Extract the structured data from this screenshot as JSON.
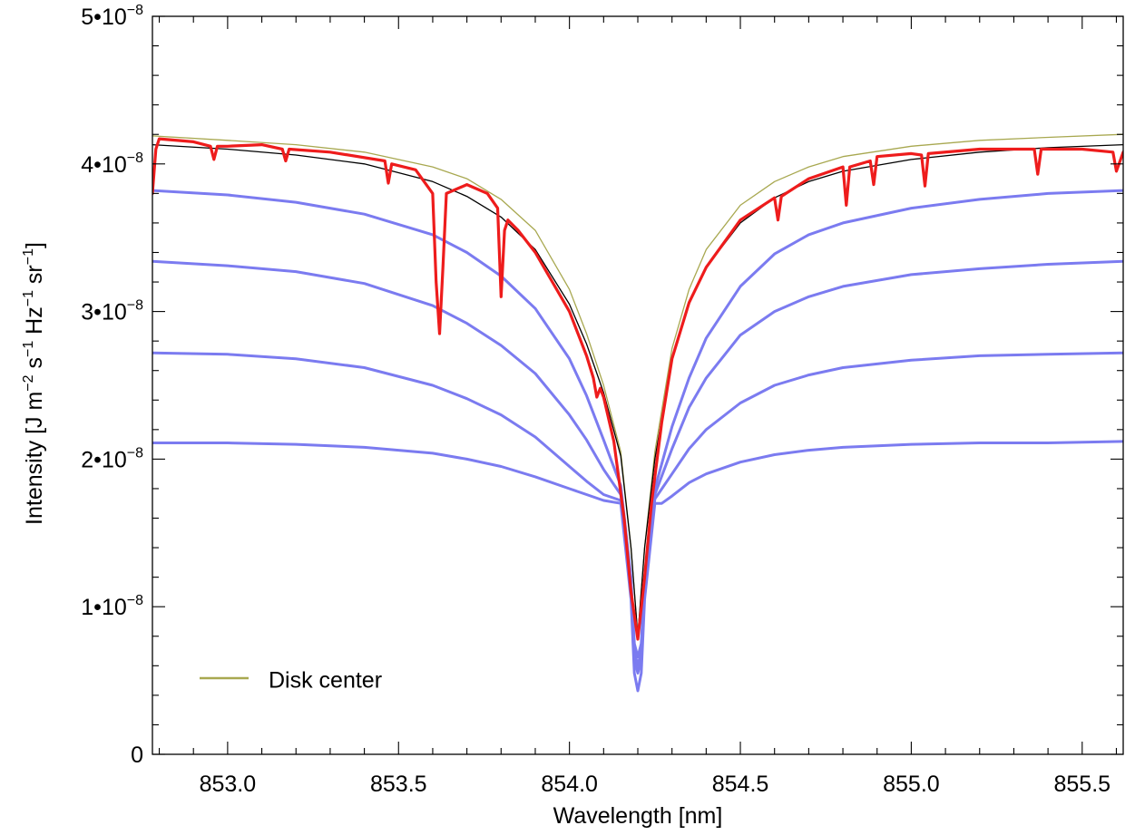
{
  "chart_data": {
    "type": "line",
    "xlabel": "Wavelength [nm]",
    "ylabel": {
      "parts": [
        {
          "t": "Intensity [J m",
          "sup": false
        },
        {
          "t": "−2",
          "sup": true
        },
        {
          "t": " s",
          "sup": false
        },
        {
          "t": "−1",
          "sup": true
        },
        {
          "t": " Hz",
          "sup": false
        },
        {
          "t": "−1",
          "sup": true
        },
        {
          "t": " sr",
          "sup": false
        },
        {
          "t": "−1",
          "sup": true
        },
        {
          "t": "]",
          "sup": false
        }
      ]
    },
    "xlim": [
      852.78,
      855.62
    ],
    "ylim": [
      0,
      5e-08
    ],
    "x_ticks": [
      {
        "value": 853.0,
        "label": "853.0"
      },
      {
        "value": 853.5,
        "label": "853.5"
      },
      {
        "value": 854.0,
        "label": "854.0"
      },
      {
        "value": 854.5,
        "label": "854.5"
      },
      {
        "value": 855.0,
        "label": "855.0"
      },
      {
        "value": 855.5,
        "label": "855.5"
      }
    ],
    "y_ticks": [
      {
        "value": 0,
        "mant": "0",
        "exp": ""
      },
      {
        "value": 1e-08,
        "mant": "1•10",
        "exp": "−8"
      },
      {
        "value": 2e-08,
        "mant": "2•10",
        "exp": "−8"
      },
      {
        "value": 3e-08,
        "mant": "3•10",
        "exp": "−8"
      },
      {
        "value": 4e-08,
        "mant": "4•10",
        "exp": "−8"
      },
      {
        "value": 5e-08,
        "mant": "5•10",
        "exp": "−8"
      }
    ],
    "legend": {
      "position": "bottom-left",
      "entries": [
        {
          "label": "Disk center",
          "color": "#a8a850"
        }
      ]
    },
    "series": [
      {
        "name": "Disk center",
        "color": "#a8a850",
        "width": 1.3,
        "x": [
          852.78,
          853.0,
          853.2,
          853.4,
          853.6,
          853.7,
          853.8,
          853.9,
          854.0,
          854.05,
          854.1,
          854.15,
          854.18,
          854.2,
          854.22,
          854.25,
          854.3,
          854.35,
          854.4,
          854.5,
          854.6,
          854.7,
          854.8,
          855.0,
          855.2,
          855.4,
          855.62
        ],
        "y": [
          4.19e-08,
          4.16e-08,
          4.13e-08,
          4.08e-08,
          3.98e-08,
          3.9e-08,
          3.76e-08,
          3.55e-08,
          3.15e-08,
          2.85e-08,
          2.5e-08,
          2.05e-08,
          1.4e-08,
          8e-09,
          1.4e-08,
          2.05e-08,
          2.75e-08,
          3.15e-08,
          3.42e-08,
          3.72e-08,
          3.88e-08,
          3.98e-08,
          4.05e-08,
          4.12e-08,
          4.16e-08,
          4.18e-08,
          4.2e-08
        ]
      },
      {
        "name": "",
        "color": "#000000",
        "width": 1.3,
        "x": [
          852.78,
          853.0,
          853.2,
          853.4,
          853.6,
          853.7,
          853.8,
          853.9,
          854.0,
          854.05,
          854.1,
          854.15,
          854.18,
          854.2,
          854.22,
          854.25,
          854.3,
          854.35,
          854.4,
          854.5,
          854.6,
          854.7,
          854.8,
          855.0,
          855.2,
          855.4,
          855.62
        ],
        "y": [
          4.13e-08,
          4.1e-08,
          4.06e-08,
          4e-08,
          3.88e-08,
          3.78e-08,
          3.64e-08,
          3.42e-08,
          3.05e-08,
          2.78e-08,
          2.45e-08,
          2.02e-08,
          1.4e-08,
          8e-09,
          1.4e-08,
          2e-08,
          2.68e-08,
          3.05e-08,
          3.3e-08,
          3.6e-08,
          3.77e-08,
          3.88e-08,
          3.95e-08,
          4.03e-08,
          4.08e-08,
          4.11e-08,
          4.13e-08
        ]
      },
      {
        "name": "",
        "color": "#7b7bf0",
        "width": 3,
        "x": [
          852.78,
          853.0,
          853.2,
          853.4,
          853.6,
          853.7,
          853.8,
          853.9,
          854.0,
          854.05,
          854.1,
          854.15,
          854.18,
          854.19,
          854.2,
          854.21,
          854.22,
          854.25,
          854.3,
          854.35,
          854.4,
          854.5,
          854.6,
          854.7,
          854.8,
          855.0,
          855.2,
          855.4,
          855.62
        ],
        "y": [
          3.82e-08,
          3.79e-08,
          3.74e-08,
          3.66e-08,
          3.52e-08,
          3.4e-08,
          3.24e-08,
          3.02e-08,
          2.68e-08,
          2.43e-08,
          2.13e-08,
          1.82e-08,
          1.2e-08,
          7.5e-09,
          6.6e-09,
          7.5e-09,
          1.2e-08,
          1.8e-08,
          2.22e-08,
          2.55e-08,
          2.82e-08,
          3.17e-08,
          3.39e-08,
          3.52e-08,
          3.6e-08,
          3.7e-08,
          3.76e-08,
          3.8e-08,
          3.82e-08
        ]
      },
      {
        "name": "",
        "color": "#7b7bf0",
        "width": 3,
        "x": [
          852.78,
          853.0,
          853.2,
          853.4,
          853.6,
          853.7,
          853.8,
          853.9,
          854.0,
          854.05,
          854.1,
          854.15,
          854.18,
          854.19,
          854.2,
          854.21,
          854.22,
          854.25,
          854.3,
          854.35,
          854.4,
          854.5,
          854.6,
          854.7,
          854.8,
          855.0,
          855.2,
          855.4,
          855.62
        ],
        "y": [
          3.34e-08,
          3.31e-08,
          3.27e-08,
          3.19e-08,
          3.04e-08,
          2.92e-08,
          2.77e-08,
          2.58e-08,
          2.3e-08,
          2.13e-08,
          1.93e-08,
          1.76e-08,
          1.15e-08,
          7e-09,
          6e-09,
          7e-09,
          1.15e-08,
          1.76e-08,
          2.07e-08,
          2.35e-08,
          2.55e-08,
          2.84e-08,
          3e-08,
          3.1e-08,
          3.17e-08,
          3.25e-08,
          3.29e-08,
          3.32e-08,
          3.34e-08
        ]
      },
      {
        "name": "",
        "color": "#7b7bf0",
        "width": 3,
        "x": [
          852.78,
          853.0,
          853.2,
          853.4,
          853.6,
          853.7,
          853.8,
          853.9,
          854.0,
          854.05,
          854.1,
          854.15,
          854.18,
          854.19,
          854.2,
          854.21,
          854.22,
          854.25,
          854.3,
          854.35,
          854.4,
          854.5,
          854.6,
          854.7,
          854.8,
          855.0,
          855.2,
          855.4,
          855.62
        ],
        "y": [
          2.72e-08,
          2.71e-08,
          2.68e-08,
          2.62e-08,
          2.5e-08,
          2.41e-08,
          2.3e-08,
          2.15e-08,
          1.95e-08,
          1.85e-08,
          1.76e-08,
          1.72e-08,
          1.1e-08,
          6.5e-09,
          5.5e-09,
          6.5e-09,
          1.1e-08,
          1.73e-08,
          1.9e-08,
          2.07e-08,
          2.2e-08,
          2.38e-08,
          2.5e-08,
          2.57e-08,
          2.62e-08,
          2.67e-08,
          2.7e-08,
          2.71e-08,
          2.72e-08
        ]
      },
      {
        "name": "",
        "color": "#7b7bf0",
        "width": 3,
        "x": [
          852.78,
          853.0,
          853.2,
          853.4,
          853.6,
          853.7,
          853.8,
          853.9,
          854.0,
          854.05,
          854.1,
          854.15,
          854.18,
          854.19,
          854.2,
          854.21,
          854.22,
          854.25,
          854.27,
          854.3,
          854.35,
          854.4,
          854.5,
          854.6,
          854.7,
          854.8,
          855.0,
          855.2,
          855.4,
          855.62
        ],
        "y": [
          2.11e-08,
          2.11e-08,
          2.1e-08,
          2.08e-08,
          2.04e-08,
          2e-08,
          1.95e-08,
          1.88e-08,
          1.8e-08,
          1.76e-08,
          1.72e-08,
          1.7e-08,
          1.05e-08,
          5.5e-09,
          4.3e-09,
          5.5e-09,
          1.05e-08,
          1.7e-08,
          1.7e-08,
          1.75e-08,
          1.84e-08,
          1.9e-08,
          1.98e-08,
          2.03e-08,
          2.06e-08,
          2.08e-08,
          2.1e-08,
          2.11e-08,
          2.11e-08,
          2.12e-08
        ]
      },
      {
        "name": "",
        "color": "#ee1c1c",
        "width": 3.2,
        "x": [
          852.78,
          852.79,
          852.8,
          852.9,
          852.95,
          852.96,
          852.97,
          853.0,
          853.1,
          853.16,
          853.17,
          853.18,
          853.3,
          853.46,
          853.47,
          853.48,
          853.55,
          853.6,
          853.61,
          853.62,
          853.63,
          853.64,
          853.7,
          853.76,
          853.79,
          853.8,
          853.81,
          853.82,
          853.85,
          853.9,
          853.95,
          854.0,
          854.05,
          854.07,
          854.08,
          854.09,
          854.1,
          854.13,
          854.16,
          854.18,
          854.2,
          854.22,
          854.24,
          854.27,
          854.3,
          854.35,
          854.4,
          854.5,
          854.6,
          854.61,
          854.62,
          854.7,
          854.8,
          854.81,
          854.82,
          854.88,
          854.89,
          854.9,
          855.0,
          855.03,
          855.04,
          855.05,
          855.2,
          855.36,
          855.37,
          855.38,
          855.5,
          855.59,
          855.6,
          855.62
        ],
        "y": [
          3.8e-08,
          4.1e-08,
          4.17e-08,
          4.15e-08,
          4.12e-08,
          4.03e-08,
          4.12e-08,
          4.12e-08,
          4.13e-08,
          4.1e-08,
          4.02e-08,
          4.1e-08,
          4.08e-08,
          4.02e-08,
          3.87e-08,
          4e-08,
          3.96e-08,
          3.8e-08,
          3.2e-08,
          2.85e-08,
          3.3e-08,
          3.8e-08,
          3.86e-08,
          3.8e-08,
          3.7e-08,
          3.1e-08,
          3.55e-08,
          3.62e-08,
          3.55e-08,
          3.4e-08,
          3.2e-08,
          3e-08,
          2.7e-08,
          2.55e-08,
          2.42e-08,
          2.48e-08,
          2.42e-08,
          2.12e-08,
          1.6e-08,
          1.1e-08,
          7.8e-09,
          1.2e-08,
          1.7e-08,
          2.25e-08,
          2.68e-08,
          3.06e-08,
          3.3e-08,
          3.62e-08,
          3.77e-08,
          3.62e-08,
          3.78e-08,
          3.9e-08,
          3.98e-08,
          3.72e-08,
          3.98e-08,
          4.02e-08,
          3.86e-08,
          4.05e-08,
          4.07e-08,
          4.06e-08,
          3.85e-08,
          4.07e-08,
          4.1e-08,
          4.1e-08,
          3.93e-08,
          4.1e-08,
          4.1e-08,
          4.08e-08,
          3.95e-08,
          4.08e-08
        ]
      }
    ]
  }
}
